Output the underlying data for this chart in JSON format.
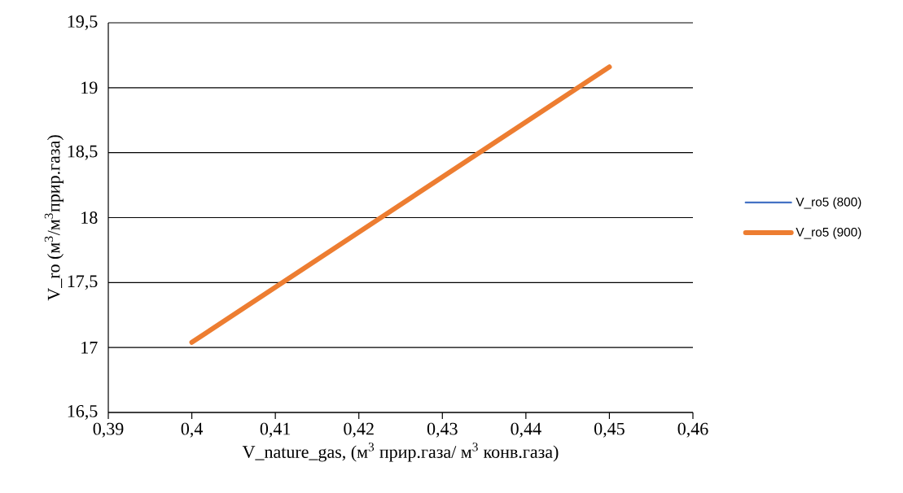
{
  "chart_data": {
    "type": "line",
    "xlabel": "V_nature_gas,  (м$^{3}$ прир.газа/ м$^{3}$ конв.газа)",
    "ylabel": "V_ro (м$^{3}$/м$^{3}$прир.газа)",
    "x": [
      0.4,
      0.45
    ],
    "series": [
      {
        "name": "V_ro5 (800)",
        "color": "#4472c4",
        "values": [
          null,
          null
        ]
      },
      {
        "name": "V_ro5 (900)",
        "color": "#ed7d31",
        "values": [
          17.04,
          19.16
        ]
      }
    ],
    "xlim": [
      0.39,
      0.46
    ],
    "xticks": [
      {
        "value": 0.39,
        "label": "0,39"
      },
      {
        "value": 0.4,
        "label": "0,4"
      },
      {
        "value": 0.41,
        "label": "0,41"
      },
      {
        "value": 0.42,
        "label": "0,42"
      },
      {
        "value": 0.43,
        "label": "0,43"
      },
      {
        "value": 0.44,
        "label": "0,44"
      },
      {
        "value": 0.45,
        "label": "0,45"
      },
      {
        "value": 0.46,
        "label": "0,46"
      }
    ],
    "ylim": [
      16.5,
      19.5
    ],
    "yticks": [
      {
        "value": 16.5,
        "label": "16,5"
      },
      17,
      {
        "value": 17.5,
        "label": "17,5"
      },
      18,
      {
        "value": 18.5,
        "label": "18,5"
      },
      19,
      {
        "value": 19.5,
        "label": "19,5"
      }
    ],
    "grid": "y",
    "legend": "right",
    "marker": "none",
    "line_style": "solid"
  }
}
